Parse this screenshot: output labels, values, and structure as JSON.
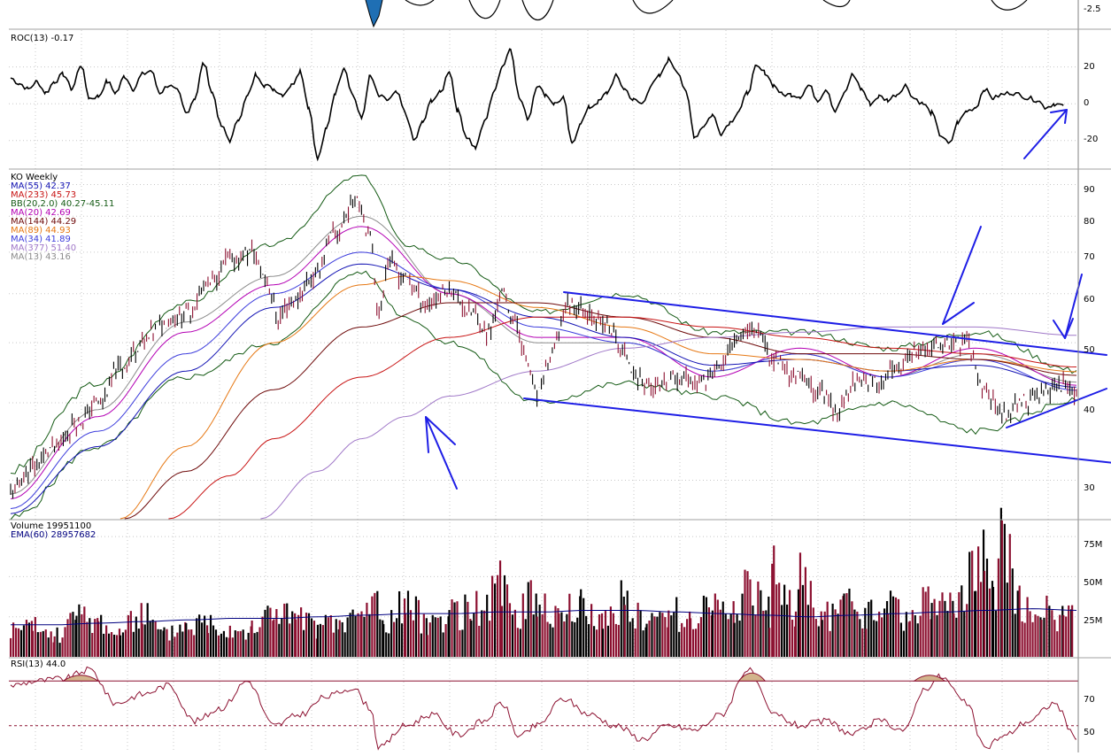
{
  "chart_data": [
    {
      "type": "line",
      "panel": "roc",
      "title": "ROC(13) -0.17",
      "axis_ticks": [
        "20",
        "0",
        "-20"
      ],
      "tick_values": [
        20,
        0,
        -20
      ],
      "ylim": [
        -35,
        40
      ],
      "top_edge_tick": "-2.5",
      "x": [
        0,
        10,
        20,
        30,
        40,
        50,
        60,
        70,
        80,
        90,
        100,
        110,
        120,
        130,
        140,
        150,
        160,
        170,
        180,
        190,
        200,
        210,
        220,
        230,
        240,
        250,
        260,
        270,
        280,
        290,
        300,
        310,
        320,
        330,
        340,
        350,
        360,
        370,
        380,
        390,
        400,
        410,
        420,
        430,
        440,
        450,
        460,
        470,
        480,
        490,
        500,
        510,
        520,
        530,
        540,
        550,
        560,
        570,
        580,
        590,
        600,
        610,
        620,
        630,
        640,
        650,
        660,
        670,
        680,
        690,
        700,
        710,
        720,
        730,
        740,
        750,
        760,
        770,
        780,
        790,
        800,
        810,
        820,
        830,
        840,
        850,
        860,
        870,
        880,
        890,
        900,
        910,
        920,
        930,
        940,
        950,
        960,
        970,
        980,
        990,
        1000,
        1010,
        1020,
        1030,
        1040,
        1050,
        1060,
        1070,
        1080,
        1090,
        1100,
        1110,
        1120,
        1130,
        1140,
        1150,
        1160,
        1170,
        1180,
        1190,
        1200
      ],
      "values": [
        14,
        11,
        8,
        12,
        6,
        12,
        16,
        8,
        21,
        3,
        4,
        12,
        6,
        15,
        8,
        16,
        18,
        6,
        10,
        7,
        -5,
        3,
        22,
        6,
        -12,
        -20,
        -8,
        4,
        16,
        10,
        8,
        5,
        10,
        18,
        -2,
        -30,
        -14,
        6,
        20,
        5,
        -8,
        15,
        4,
        2,
        6,
        -5,
        -20,
        -10,
        2,
        6,
        18,
        -4,
        -18,
        -24,
        -10,
        5,
        20,
        30,
        3,
        -8,
        10,
        5,
        0,
        3,
        -22,
        -10,
        -2,
        1,
        6,
        15,
        8,
        2,
        0,
        10,
        15,
        24,
        18,
        6,
        -18,
        -12,
        -6,
        -16,
        -10,
        -4,
        6,
        20,
        17,
        10,
        5,
        5,
        4,
        10,
        2,
        8,
        -4,
        5,
        16,
        8,
        0,
        4,
        2,
        5,
        10,
        3,
        0,
        -5,
        -17,
        -22,
        -10,
        -4,
        -2,
        8,
        3,
        5,
        6,
        5,
        3,
        2,
        -2,
        0,
        -1
      ],
      "line_color": "#000000"
    },
    {
      "type": "line",
      "panel": "price",
      "title": "KO Weekly",
      "yscale": "log",
      "ylim": [
        26,
        95
      ],
      "axis_ticks": [
        "90",
        "80",
        "70",
        "60",
        "50",
        "40",
        "30"
      ],
      "tick_values": [
        90,
        80,
        70,
        60,
        50,
        40,
        30
      ],
      "legend_placement": "top-left",
      "legend": [
        {
          "label": "MA(55) 42.37",
          "color": "#1414b4"
        },
        {
          "label": "MA(233) 45.73",
          "color": "#c81414"
        },
        {
          "label": "BB(20,2.0) 40.27-45.11",
          "color": "#145a14"
        },
        {
          "label": "MA(20) 42.69",
          "color": "#b400b4"
        },
        {
          "label": "MA(144) 44.29",
          "color": "#6e0a0a"
        },
        {
          "label": "MA(89) 44.93",
          "color": "#e67814"
        },
        {
          "label": "MA(34) 41.89",
          "color": "#3c3cdc"
        },
        {
          "label": "MA(377) 51.40",
          "color": "#a078c8"
        },
        {
          "label": "MA(13) 43.16",
          "color": "#8c8c8c"
        }
      ],
      "x": [
        0,
        25,
        50,
        75,
        100,
        125,
        150,
        175,
        200,
        225,
        250,
        275,
        290,
        305,
        320,
        345,
        370,
        395,
        410,
        420,
        430,
        450,
        475,
        500,
        525,
        545,
        560,
        575,
        590,
        600,
        615,
        635,
        660,
        680,
        700,
        715,
        735,
        760,
        785,
        810,
        830,
        850,
        870,
        895,
        920,
        945,
        965,
        990,
        1010,
        1030,
        1050,
        1070,
        1090,
        1110,
        1130,
        1150,
        1170,
        1195,
        1215
      ],
      "values": [
        28.5,
        31.5,
        34,
        37,
        40,
        45.5,
        50,
        54,
        56,
        62,
        68,
        70,
        64,
        55,
        58,
        64,
        75,
        86,
        74,
        55,
        68,
        63,
        58,
        61,
        56,
        52,
        60,
        54,
        46,
        41,
        47,
        58,
        56,
        53,
        48,
        44,
        42,
        44,
        43,
        46,
        52,
        53,
        47,
        44,
        42,
        39,
        44,
        43,
        45,
        48,
        49,
        50,
        50,
        42,
        38,
        40,
        41,
        43,
        41
      ],
      "moving_averages": [
        {
          "name": "MA(13)",
          "color": "#8c8c8c",
          "x": [
            0,
            100,
            200,
            300,
            400,
            500,
            600,
            700,
            800,
            900,
            1000,
            1100,
            1215
          ],
          "values": [
            28.5,
            39,
            54,
            64,
            80,
            60,
            50,
            50,
            45,
            48,
            44,
            48,
            43.2
          ]
        },
        {
          "name": "MA(20)",
          "color": "#b400b4",
          "x": [
            0,
            100,
            200,
            300,
            400,
            500,
            600,
            700,
            800,
            900,
            1000,
            1100,
            1215
          ],
          "values": [
            28,
            38,
            52,
            62,
            77,
            60,
            51,
            51,
            44,
            49,
            44,
            49,
            42.7
          ]
        },
        {
          "name": "MA(34)",
          "color": "#3c3cdc",
          "x": [
            0,
            100,
            200,
            300,
            400,
            500,
            600,
            700,
            800,
            900,
            1000,
            1100,
            1215
          ],
          "values": [
            27,
            36,
            48,
            60,
            70,
            61,
            53,
            50,
            45,
            48,
            44,
            47,
            41.9
          ]
        },
        {
          "name": "MA(55)",
          "color": "#1414b4",
          "x": [
            0,
            100,
            200,
            300,
            400,
            500,
            600,
            700,
            800,
            900,
            1000,
            1100,
            1215
          ],
          "values": [
            26.5,
            34,
            45,
            57,
            67,
            61,
            55,
            51,
            46,
            47,
            45,
            46,
            42.4
          ]
        },
        {
          "name": "MA(89)",
          "color": "#e67814",
          "x": [
            125,
            200,
            300,
            400,
            450,
            500,
            600,
            700,
            800,
            900,
            1000,
            1100,
            1215
          ],
          "values": [
            26,
            34,
            50,
            62,
            64,
            63,
            57,
            53,
            48,
            47,
            45,
            47,
            44.9
          ]
        },
        {
          "name": "MA(144)",
          "color": "#6e0a0a",
          "x": [
            130,
            200,
            300,
            400,
            500,
            600,
            700,
            800,
            900,
            1000,
            1100,
            1215
          ],
          "values": [
            26,
            31,
            42,
            53,
            58,
            58,
            55,
            51,
            48,
            48,
            47,
            44.3
          ]
        },
        {
          "name": "MA(233)",
          "color": "#c81414",
          "x": [
            180,
            250,
            300,
            400,
            500,
            600,
            700,
            800,
            900,
            1000,
            1100,
            1215
          ],
          "values": [
            26,
            30.5,
            35,
            44,
            51,
            55,
            55,
            53,
            51,
            49,
            48,
            45.7
          ]
        },
        {
          "name": "MA(377)",
          "color": "#a078c8",
          "x": [
            285,
            350,
            400,
            450,
            500,
            600,
            700,
            800,
            900,
            1000,
            1100,
            1215
          ],
          "values": [
            26,
            31,
            35,
            38,
            41,
            45,
            49,
            51,
            52,
            53,
            53,
            51.4
          ]
        }
      ],
      "bollinger": {
        "color": "#145a14",
        "x": [
          0,
          100,
          200,
          300,
          400,
          450,
          500,
          600,
          700,
          800,
          900,
          1000,
          1100,
          1215
        ],
        "upper": [
          31,
          43,
          58,
          72,
          93,
          72,
          68,
          56,
          60,
          52,
          52,
          49,
          52,
          45.1
        ],
        "lower": [
          26,
          34,
          44,
          50,
          65,
          55,
          50,
          40,
          43,
          41,
          37,
          40,
          36,
          40.3
        ]
      }
    },
    {
      "type": "bar",
      "panel": "volume",
      "title": "Volume  19951100",
      "series_label": "EMA(60) 28957682",
      "axis_ticks": [
        "75M",
        "50M",
        "25M"
      ],
      "tick_values": [
        75,
        50,
        25
      ],
      "ylim": [
        0,
        85
      ],
      "unit": "M",
      "x": [
        0,
        25,
        50,
        75,
        100,
        125,
        150,
        175,
        200,
        225,
        250,
        275,
        300,
        325,
        350,
        375,
        400,
        415,
        425,
        450,
        475,
        500,
        525,
        540,
        560,
        575,
        600,
        625,
        650,
        675,
        700,
        725,
        750,
        775,
        800,
        825,
        840,
        865,
        870,
        895,
        900,
        925,
        950,
        975,
        1000,
        1025,
        1050,
        1075,
        1100,
        1110,
        1120,
        1130,
        1150,
        1175,
        1200,
        1210
      ],
      "values": [
        18,
        20,
        14,
        27,
        24,
        16,
        30,
        15,
        22,
        24,
        20,
        18,
        32,
        26,
        20,
        22,
        28,
        40,
        22,
        35,
        24,
        28,
        32,
        34,
        48,
        30,
        40,
        28,
        34,
        25,
        38,
        22,
        30,
        26,
        35,
        32,
        48,
        30,
        55,
        28,
        50,
        26,
        34,
        28,
        35,
        26,
        38,
        32,
        55,
        62,
        40,
        85,
        36,
        30,
        26,
        28
      ],
      "ema_values": [
        20,
        20,
        21,
        22,
        23,
        24,
        24,
        25,
        26,
        27,
        27,
        28,
        28,
        29,
        29,
        28,
        27,
        26,
        25,
        26,
        27,
        28,
        29,
        30,
        29
      ],
      "bar_colors": [
        "#8c1030",
        "#000000"
      ]
    },
    {
      "type": "line",
      "panel": "rsi",
      "title": "RSI(13) 44.0",
      "axis_ticks": [
        "70",
        "50"
      ],
      "tick_values": [
        70,
        50
      ],
      "ylim": [
        38,
        80
      ],
      "overbought": 70,
      "midline": 50,
      "x": [
        0,
        30,
        60,
        90,
        120,
        150,
        180,
        210,
        240,
        270,
        300,
        330,
        360,
        390,
        410,
        420,
        450,
        480,
        510,
        540,
        560,
        580,
        600,
        630,
        660,
        690,
        720,
        750,
        780,
        810,
        840,
        870,
        900,
        930,
        960,
        990,
        1020,
        1040,
        1060,
        1090,
        1110,
        1130,
        1160,
        1190,
        1215
      ],
      "values": [
        68,
        70,
        71,
        75,
        60,
        64,
        68,
        52,
        58,
        70,
        50,
        55,
        63,
        67,
        58,
        40,
        50,
        55,
        46,
        52,
        60,
        45,
        50,
        62,
        55,
        50,
        44,
        50,
        48,
        55,
        75,
        55,
        50,
        52,
        46,
        52,
        48,
        66,
        72,
        60,
        40,
        45,
        52,
        60,
        44
      ]
    }
  ],
  "annotations": {
    "line_color": "#1e1ee6"
  }
}
